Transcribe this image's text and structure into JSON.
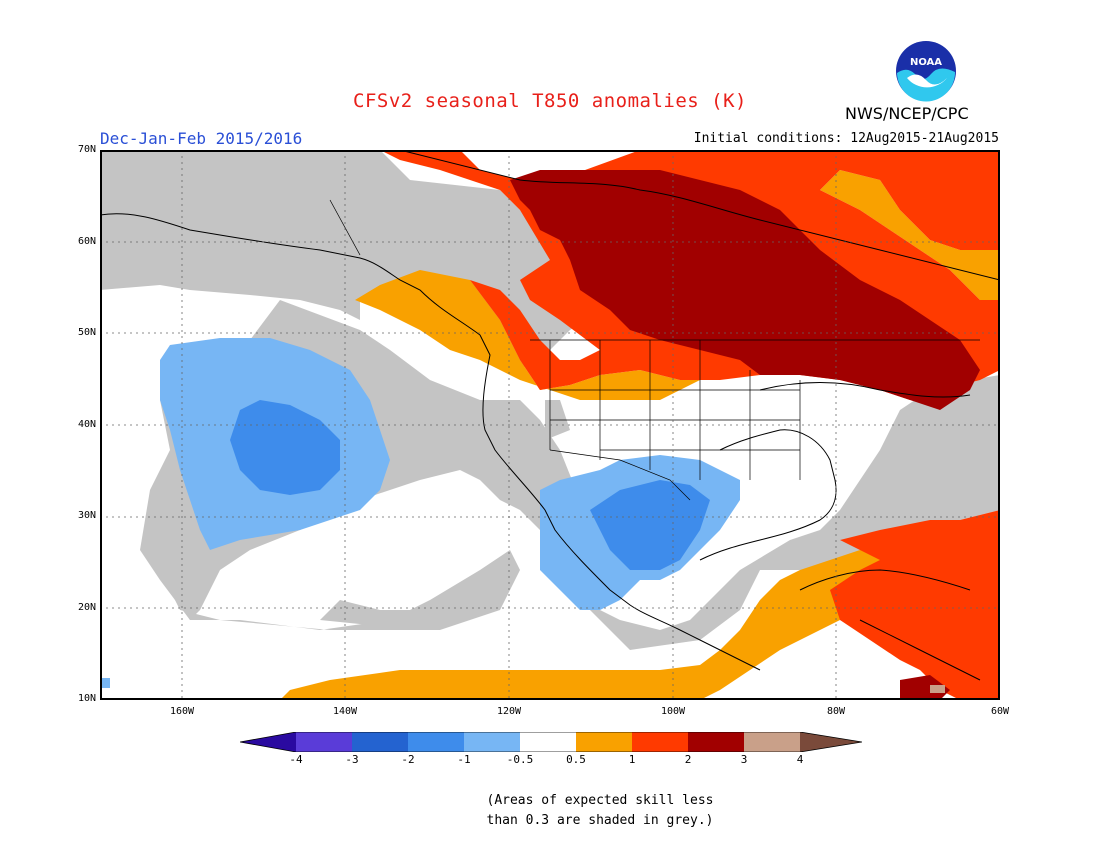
{
  "header": {
    "title": "CFSv2 seasonal T850 anomalies (K)",
    "season": "Dec-Jan-Feb 2015/2016",
    "initial_conditions": "Initial conditions: 12Aug2015-21Aug2015",
    "agency": "NWS/NCEP/CPC",
    "logo_text": "NOAA"
  },
  "map": {
    "lon_range": [
      -170,
      -60
    ],
    "lat_range": [
      10,
      70
    ],
    "lat_ticks": [
      "70N",
      "60N",
      "50N",
      "40N",
      "30N",
      "20N",
      "10N"
    ],
    "lon_ticks": [
      "160W",
      "140W",
      "120W",
      "100W",
      "80W",
      "60W"
    ],
    "colors": {
      "grey": "#c4c4c4",
      "light_blue": "#77b6f4",
      "mid_blue": "#3e8ceb",
      "orange": "#f9a100",
      "red_orange": "#ff3a00",
      "dark_red": "#a10000",
      "tan": "#c9a089",
      "land_line": "#000000"
    }
  },
  "colorbar": {
    "labels": [
      "-4",
      "-3",
      "-2",
      "-1",
      "-0.5",
      "0.5",
      "1",
      "2",
      "3",
      "4"
    ],
    "colors": [
      "#2a0aa0",
      "#5a3cd8",
      "#2463d0",
      "#3e8ceb",
      "#77b6f4",
      "#ffffff",
      "#f9a100",
      "#ff3a00",
      "#a10000",
      "#c9a089",
      "#7a4a3a"
    ]
  },
  "footnote": {
    "line1": "(Areas of expected skill less",
    "line2": "than 0.3 are shaded in grey.)"
  }
}
